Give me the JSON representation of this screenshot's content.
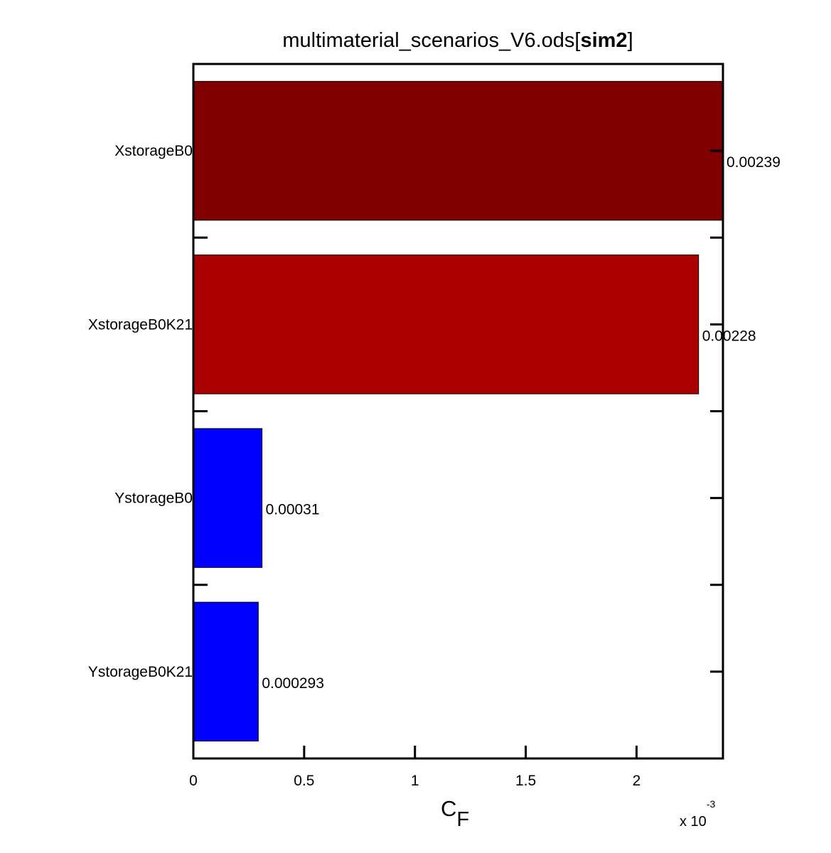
{
  "chart_data": {
    "type": "bar",
    "orientation": "horizontal",
    "title_prefix": "multimaterial_scenarios_V6.ods[",
    "title_bold": "sim2",
    "title_suffix": "]",
    "xlabel_main": "C",
    "xlabel_sub": "F",
    "exponent_prefix": "x 10",
    "exponent_power": "-3",
    "scale": 0.001,
    "xlim": [
      0,
      2.39
    ],
    "xticks": [
      0,
      0.5,
      1,
      1.5,
      2
    ],
    "xtick_labels": [
      "0",
      "0.5",
      "1",
      "1.5",
      "2"
    ],
    "grid": false,
    "legend": "none",
    "categories": [
      "XstorageB0",
      "XstorageB0K21",
      "YstorageB0",
      "YstorageB0K21"
    ],
    "values": [
      0.00239,
      0.00228,
      0.00031,
      0.000293
    ],
    "value_labels": [
      "0.00239",
      "0.00228",
      "0.00031",
      "0.000293"
    ],
    "colors": [
      "#800000",
      "#aa0000",
      "#0000ff",
      "#0000ff"
    ]
  }
}
